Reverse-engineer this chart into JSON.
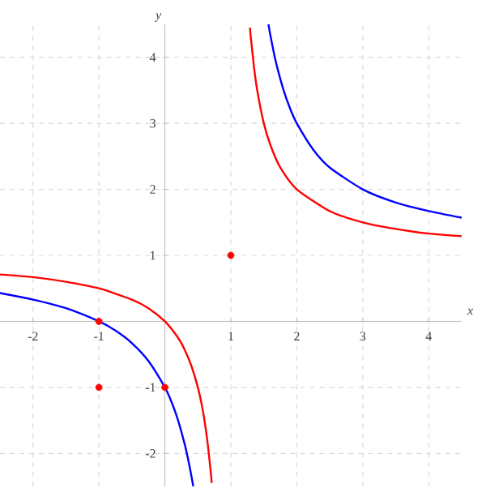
{
  "chart_data": {
    "type": "line",
    "xlabel": "x",
    "ylabel": "y",
    "xlim": [
      -2.5,
      4.5
    ],
    "ylim": [
      -2.5,
      4.5
    ],
    "xticks": [
      -2,
      -1,
      1,
      2,
      3,
      4
    ],
    "yticks": [
      -2,
      -1,
      1,
      2,
      3,
      4
    ],
    "grid": true,
    "series": [
      {
        "color": "#0000ff",
        "marker": "none",
        "x": [
          -2.5,
          -2,
          -1.5,
          -1,
          -0.75,
          -0.5,
          -0.25,
          0,
          0.1,
          0.2,
          0.3,
          0.35,
          0.4,
          0.43,
          null,
          1.57,
          1.6,
          1.65,
          1.7,
          1.8,
          1.9,
          2,
          2.25,
          2.5,
          3,
          3.5,
          4,
          4.5
        ],
        "values": [
          0.43,
          0.33,
          0.2,
          0,
          -0.14,
          -0.33,
          -0.6,
          -1,
          -1.22,
          -1.5,
          -1.86,
          -2.08,
          -2.33,
          -2.5,
          null,
          4.5,
          4.33,
          4.08,
          3.86,
          3.5,
          3.22,
          3,
          2.6,
          2.33,
          2,
          1.8,
          1.67,
          1.57
        ]
      },
      {
        "color": "#ff0000",
        "marker": "none",
        "x": [
          -2.5,
          -2,
          -1.5,
          -1,
          -0.5,
          -0.25,
          0,
          0.2,
          0.3,
          0.4,
          0.5,
          0.55,
          0.6,
          0.65,
          0.7,
          0.71,
          null,
          1.29,
          1.3,
          1.35,
          1.4,
          1.5,
          1.6,
          1.75,
          2,
          2.5,
          3,
          3.5,
          4,
          4.5
        ],
        "values": [
          0.71,
          0.67,
          0.6,
          0.5,
          0.33,
          0.2,
          0,
          -0.25,
          -0.43,
          -0.67,
          -1,
          -1.22,
          -1.5,
          -1.86,
          -2.33,
          -2.45,
          null,
          4.45,
          4.33,
          3.86,
          3.5,
          3,
          2.67,
          2.33,
          2,
          1.67,
          1.5,
          1.4,
          1.33,
          1.29
        ]
      },
      {
        "type": "scatter",
        "color": "#ff0000",
        "marker": "circle",
        "x": [
          1,
          -1,
          -1,
          0
        ],
        "values": [
          1,
          0,
          -1,
          -1
        ]
      }
    ]
  }
}
